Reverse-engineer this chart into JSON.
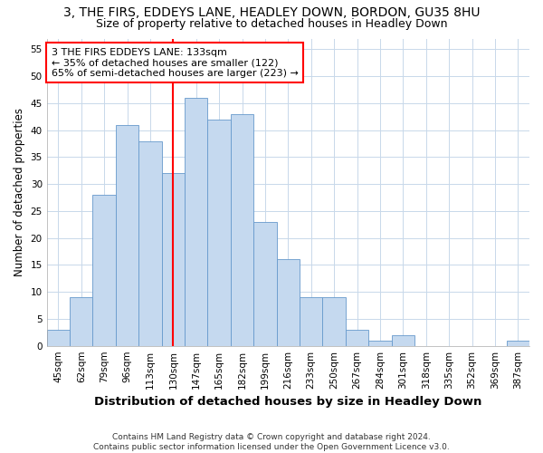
{
  "title": "3, THE FIRS, EDDEYS LANE, HEADLEY DOWN, BORDON, GU35 8HU",
  "subtitle": "Size of property relative to detached houses in Headley Down",
  "xlabel": "Distribution of detached houses by size in Headley Down",
  "ylabel": "Number of detached properties",
  "categories": [
    "45sqm",
    "62sqm",
    "79sqm",
    "96sqm",
    "113sqm",
    "130sqm",
    "147sqm",
    "165sqm",
    "182sqm",
    "199sqm",
    "216sqm",
    "233sqm",
    "250sqm",
    "267sqm",
    "284sqm",
    "301sqm",
    "318sqm",
    "335sqm",
    "352sqm",
    "369sqm",
    "387sqm"
  ],
  "values": [
    3,
    9,
    28,
    41,
    38,
    32,
    46,
    42,
    43,
    23,
    16,
    9,
    9,
    3,
    1,
    2,
    0,
    0,
    0,
    0,
    1
  ],
  "bar_color": "#c5d9ef",
  "bar_edge_color": "#6699cc",
  "grid_color": "#c8d8ea",
  "background_color": "#ffffff",
  "plot_bg_color": "#ffffff",
  "vline_x_index": 5,
  "vline_color": "red",
  "annotation_text": "3 THE FIRS EDDEYS LANE: 133sqm\n← 35% of detached houses are smaller (122)\n65% of semi-detached houses are larger (223) →",
  "annotation_box_color": "white",
  "annotation_box_edge": "red",
  "ylim": [
    0,
    57
  ],
  "yticks": [
    0,
    5,
    10,
    15,
    20,
    25,
    30,
    35,
    40,
    45,
    50,
    55
  ],
  "footnote": "Contains HM Land Registry data © Crown copyright and database right 2024.\nContains public sector information licensed under the Open Government Licence v3.0.",
  "title_fontsize": 10,
  "subtitle_fontsize": 9,
  "xlabel_fontsize": 9.5,
  "ylabel_fontsize": 8.5,
  "tick_fontsize": 7.5,
  "annotation_fontsize": 8,
  "footnote_fontsize": 6.5
}
